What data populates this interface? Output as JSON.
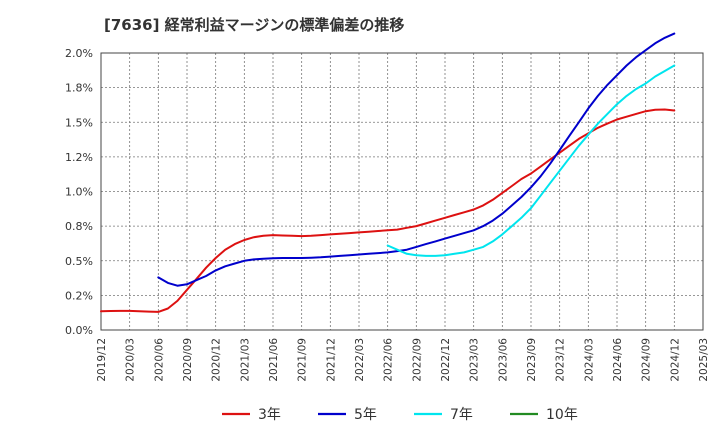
{
  "chart_data": {
    "type": "line",
    "title": "[7636]  経常利益マージンの標準偏差の推移",
    "xlabel": "",
    "ylabel": "",
    "ylim": [
      0.0,
      0.02
    ],
    "x_ticks": [
      "2019/12",
      "2020/03",
      "2020/06",
      "2020/09",
      "2020/12",
      "2021/03",
      "2021/06",
      "2021/09",
      "2021/12",
      "2022/03",
      "2022/06",
      "2022/09",
      "2022/12",
      "2023/03",
      "2023/06",
      "2023/09",
      "2023/12",
      "2024/03",
      "2024/06",
      "2024/09",
      "2024/12",
      "2025/03"
    ],
    "y_ticks": [
      {
        "value": 0.0,
        "label": "0.0%"
      },
      {
        "value": 0.0025,
        "label": "0.2%"
      },
      {
        "value": 0.005,
        "label": "0.5%"
      },
      {
        "value": 0.0075,
        "label": "0.8%"
      },
      {
        "value": 0.01,
        "label": "1.0%"
      },
      {
        "value": 0.0125,
        "label": "1.2%"
      },
      {
        "value": 0.015,
        "label": "1.5%"
      },
      {
        "value": 0.0175,
        "label": "1.8%"
      },
      {
        "value": 0.02,
        "label": "2.0%"
      }
    ],
    "grid": true,
    "legend_position": "bottom",
    "series": [
      {
        "name": "3年",
        "color": "#dd1111",
        "points": [
          [
            "2019/12",
            0.00135
          ],
          [
            "2020/01",
            0.00137
          ],
          [
            "2020/02",
            0.00138
          ],
          [
            "2020/03",
            0.00138
          ],
          [
            "2020/04",
            0.00136
          ],
          [
            "2020/05",
            0.00133
          ],
          [
            "2020/06",
            0.00131
          ],
          [
            "2020/07",
            0.00155
          ],
          [
            "2020/08",
            0.0021
          ],
          [
            "2020/09",
            0.0029
          ],
          [
            "2020/10",
            0.0037
          ],
          [
            "2020/11",
            0.0045
          ],
          [
            "2020/12",
            0.0052
          ],
          [
            "2021/01",
            0.0058
          ],
          [
            "2021/02",
            0.0062
          ],
          [
            "2021/03",
            0.0065
          ],
          [
            "2021/04",
            0.0067
          ],
          [
            "2021/05",
            0.0068
          ],
          [
            "2021/06",
            0.00685
          ],
          [
            "2021/07",
            0.00682
          ],
          [
            "2021/08",
            0.0068
          ],
          [
            "2021/09",
            0.00678
          ],
          [
            "2021/10",
            0.0068
          ],
          [
            "2021/11",
            0.00685
          ],
          [
            "2021/12",
            0.0069
          ],
          [
            "2022/01",
            0.00695
          ],
          [
            "2022/02",
            0.007
          ],
          [
            "2022/03",
            0.00705
          ],
          [
            "2022/04",
            0.0071
          ],
          [
            "2022/05",
            0.00715
          ],
          [
            "2022/06",
            0.0072
          ],
          [
            "2022/07",
            0.00725
          ],
          [
            "2022/08",
            0.00738
          ],
          [
            "2022/09",
            0.0075
          ],
          [
            "2022/10",
            0.0077
          ],
          [
            "2022/11",
            0.0079
          ],
          [
            "2022/12",
            0.0081
          ],
          [
            "2023/01",
            0.0083
          ],
          [
            "2023/02",
            0.0085
          ],
          [
            "2023/03",
            0.0087
          ],
          [
            "2023/04",
            0.009
          ],
          [
            "2023/05",
            0.0094
          ],
          [
            "2023/06",
            0.0099
          ],
          [
            "2023/07",
            0.0104
          ],
          [
            "2023/08",
            0.0109
          ],
          [
            "2023/09",
            0.0113
          ],
          [
            "2023/10",
            0.0118
          ],
          [
            "2023/11",
            0.0123
          ],
          [
            "2023/12",
            0.0128
          ],
          [
            "2024/01",
            0.0133
          ],
          [
            "2024/02",
            0.0138
          ],
          [
            "2024/03",
            0.0142
          ],
          [
            "2024/04",
            0.0146
          ],
          [
            "2024/05",
            0.0149
          ],
          [
            "2024/06",
            0.0152
          ],
          [
            "2024/07",
            0.0154
          ],
          [
            "2024/08",
            0.0156
          ],
          [
            "2024/09",
            0.0158
          ],
          [
            "2024/10",
            0.0159
          ],
          [
            "2024/11",
            0.01592
          ],
          [
            "2024/12",
            0.01585
          ]
        ]
      },
      {
        "name": "5年",
        "color": "#0000cc",
        "points": [
          [
            "2020/06",
            0.0038
          ],
          [
            "2020/07",
            0.0034
          ],
          [
            "2020/08",
            0.0032
          ],
          [
            "2020/09",
            0.0033
          ],
          [
            "2020/10",
            0.0036
          ],
          [
            "2020/11",
            0.0039
          ],
          [
            "2020/12",
            0.0043
          ],
          [
            "2021/01",
            0.0046
          ],
          [
            "2021/02",
            0.0048
          ],
          [
            "2021/03",
            0.005
          ],
          [
            "2021/04",
            0.0051
          ],
          [
            "2021/05",
            0.00515
          ],
          [
            "2021/06",
            0.00518
          ],
          [
            "2021/07",
            0.0052
          ],
          [
            "2021/08",
            0.0052
          ],
          [
            "2021/09",
            0.0052
          ],
          [
            "2021/10",
            0.00522
          ],
          [
            "2021/11",
            0.00525
          ],
          [
            "2021/12",
            0.0053
          ],
          [
            "2022/01",
            0.00535
          ],
          [
            "2022/02",
            0.0054
          ],
          [
            "2022/03",
            0.00545
          ],
          [
            "2022/04",
            0.0055
          ],
          [
            "2022/05",
            0.00555
          ],
          [
            "2022/06",
            0.0056
          ],
          [
            "2022/07",
            0.0057
          ],
          [
            "2022/08",
            0.0058
          ],
          [
            "2022/09",
            0.006
          ],
          [
            "2022/10",
            0.0062
          ],
          [
            "2022/11",
            0.0064
          ],
          [
            "2022/12",
            0.0066
          ],
          [
            "2023/01",
            0.0068
          ],
          [
            "2023/02",
            0.007
          ],
          [
            "2023/03",
            0.0072
          ],
          [
            "2023/04",
            0.0075
          ],
          [
            "2023/05",
            0.0079
          ],
          [
            "2023/06",
            0.0084
          ],
          [
            "2023/07",
            0.009
          ],
          [
            "2023/08",
            0.0096
          ],
          [
            "2023/09",
            0.0103
          ],
          [
            "2023/10",
            0.0111
          ],
          [
            "2023/11",
            0.012
          ],
          [
            "2023/12",
            0.013
          ],
          [
            "2024/01",
            0.014
          ],
          [
            "2024/02",
            0.015
          ],
          [
            "2024/03",
            0.016
          ],
          [
            "2024/04",
            0.0169
          ],
          [
            "2024/05",
            0.0177
          ],
          [
            "2024/06",
            0.0184
          ],
          [
            "2024/07",
            0.0191
          ],
          [
            "2024/08",
            0.0197
          ],
          [
            "2024/09",
            0.0202
          ],
          [
            "2024/10",
            0.0207
          ],
          [
            "2024/11",
            0.0211
          ],
          [
            "2024/12",
            0.0214
          ]
        ]
      },
      {
        "name": "7年",
        "color": "#00e5ee",
        "points": [
          [
            "2022/06",
            0.0061
          ],
          [
            "2022/07",
            0.0058
          ],
          [
            "2022/08",
            0.0055
          ],
          [
            "2022/09",
            0.0054
          ],
          [
            "2022/10",
            0.00535
          ],
          [
            "2022/11",
            0.00535
          ],
          [
            "2022/12",
            0.0054
          ],
          [
            "2023/01",
            0.0055
          ],
          [
            "2023/02",
            0.0056
          ],
          [
            "2023/03",
            0.0058
          ],
          [
            "2023/04",
            0.006
          ],
          [
            "2023/05",
            0.0064
          ],
          [
            "2023/06",
            0.0069
          ],
          [
            "2023/07",
            0.0075
          ],
          [
            "2023/08",
            0.0081
          ],
          [
            "2023/09",
            0.0088
          ],
          [
            "2023/10",
            0.0097
          ],
          [
            "2023/11",
            0.0106
          ],
          [
            "2023/12",
            0.0115
          ],
          [
            "2024/01",
            0.0124
          ],
          [
            "2024/02",
            0.0133
          ],
          [
            "2024/03",
            0.0141
          ],
          [
            "2024/04",
            0.0149
          ],
          [
            "2024/05",
            0.0156
          ],
          [
            "2024/06",
            0.0163
          ],
          [
            "2024/07",
            0.0169
          ],
          [
            "2024/08",
            0.0174
          ],
          [
            "2024/09",
            0.0178
          ],
          [
            "2024/10",
            0.0183
          ],
          [
            "2024/11",
            0.0187
          ],
          [
            "2024/12",
            0.0191
          ]
        ]
      },
      {
        "name": "10年",
        "color": "#228b22",
        "points": []
      }
    ]
  }
}
